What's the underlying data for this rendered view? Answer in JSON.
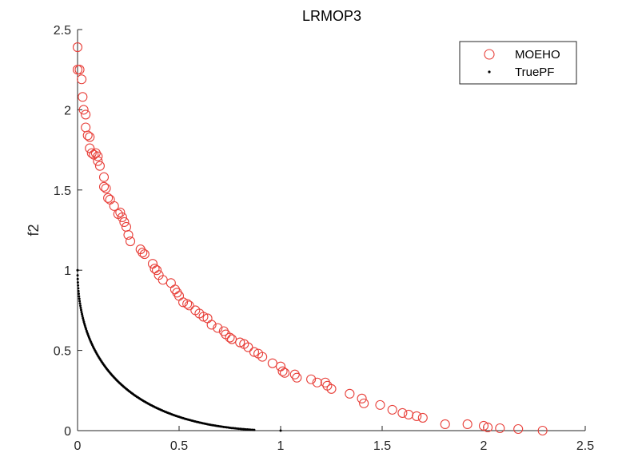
{
  "chart_data": {
    "type": "scatter",
    "title": "LRMOP3",
    "xlabel": "",
    "ylabel": "f2",
    "xlim": [
      0,
      2.5
    ],
    "ylim": [
      0,
      2.5
    ],
    "xticks": [
      "0",
      "0.5",
      "1",
      "1.5",
      "2",
      "2.5"
    ],
    "yticks": [
      "0",
      "0.5",
      "1",
      "1.5",
      "2",
      "2.5"
    ],
    "grid": false,
    "legend_position": "top-right",
    "series": [
      {
        "name": "MOEHO",
        "marker": "open-circle",
        "color": "#e8403a",
        "points": [
          [
            0.0,
            2.39
          ],
          [
            0.0,
            2.25
          ],
          [
            0.01,
            2.25
          ],
          [
            0.02,
            2.19
          ],
          [
            0.025,
            2.08
          ],
          [
            0.03,
            2.0
          ],
          [
            0.04,
            1.97
          ],
          [
            0.04,
            1.89
          ],
          [
            0.05,
            1.84
          ],
          [
            0.06,
            1.83
          ],
          [
            0.06,
            1.76
          ],
          [
            0.07,
            1.73
          ],
          [
            0.08,
            1.72
          ],
          [
            0.09,
            1.73
          ],
          [
            0.1,
            1.71
          ],
          [
            0.1,
            1.68
          ],
          [
            0.11,
            1.65
          ],
          [
            0.13,
            1.58
          ],
          [
            0.13,
            1.52
          ],
          [
            0.14,
            1.51
          ],
          [
            0.15,
            1.45
          ],
          [
            0.16,
            1.44
          ],
          [
            0.18,
            1.4
          ],
          [
            0.2,
            1.35
          ],
          [
            0.21,
            1.36
          ],
          [
            0.22,
            1.33
          ],
          [
            0.23,
            1.3
          ],
          [
            0.24,
            1.27
          ],
          [
            0.25,
            1.22
          ],
          [
            0.26,
            1.18
          ],
          [
            0.31,
            1.13
          ],
          [
            0.32,
            1.11
          ],
          [
            0.33,
            1.1
          ],
          [
            0.37,
            1.04
          ],
          [
            0.38,
            1.01
          ],
          [
            0.39,
            1.0
          ],
          [
            0.4,
            0.97
          ],
          [
            0.42,
            0.94
          ],
          [
            0.46,
            0.92
          ],
          [
            0.48,
            0.88
          ],
          [
            0.49,
            0.86
          ],
          [
            0.5,
            0.84
          ],
          [
            0.52,
            0.8
          ],
          [
            0.54,
            0.79
          ],
          [
            0.55,
            0.78
          ],
          [
            0.58,
            0.75
          ],
          [
            0.6,
            0.73
          ],
          [
            0.62,
            0.71
          ],
          [
            0.64,
            0.7
          ],
          [
            0.66,
            0.66
          ],
          [
            0.69,
            0.64
          ],
          [
            0.72,
            0.62
          ],
          [
            0.73,
            0.6
          ],
          [
            0.75,
            0.58
          ],
          [
            0.76,
            0.57
          ],
          [
            0.8,
            0.55
          ],
          [
            0.82,
            0.54
          ],
          [
            0.84,
            0.52
          ],
          [
            0.87,
            0.49
          ],
          [
            0.89,
            0.48
          ],
          [
            0.91,
            0.46
          ],
          [
            0.96,
            0.42
          ],
          [
            1.0,
            0.4
          ],
          [
            1.01,
            0.37
          ],
          [
            1.02,
            0.36
          ],
          [
            1.07,
            0.35
          ],
          [
            1.08,
            0.33
          ],
          [
            1.15,
            0.32
          ],
          [
            1.18,
            0.3
          ],
          [
            1.22,
            0.3
          ],
          [
            1.23,
            0.28
          ],
          [
            1.25,
            0.26
          ],
          [
            1.34,
            0.23
          ],
          [
            1.4,
            0.2
          ],
          [
            1.41,
            0.17
          ],
          [
            1.49,
            0.16
          ],
          [
            1.55,
            0.13
          ],
          [
            1.6,
            0.11
          ],
          [
            1.63,
            0.1
          ],
          [
            1.67,
            0.09
          ],
          [
            1.7,
            0.08
          ],
          [
            1.81,
            0.04
          ],
          [
            1.92,
            0.04
          ],
          [
            2.0,
            0.03
          ],
          [
            2.02,
            0.02
          ],
          [
            2.08,
            0.015
          ],
          [
            2.17,
            0.01
          ],
          [
            2.29,
            0.0
          ]
        ]
      },
      {
        "name": "TruePF",
        "marker": "dot",
        "color": "#000000",
        "generator": "(1 - sqrt(f1))^2 over 0 ≤ f1 ≤ 0.87, plus points (0,1) and (1,0)"
      }
    ]
  }
}
